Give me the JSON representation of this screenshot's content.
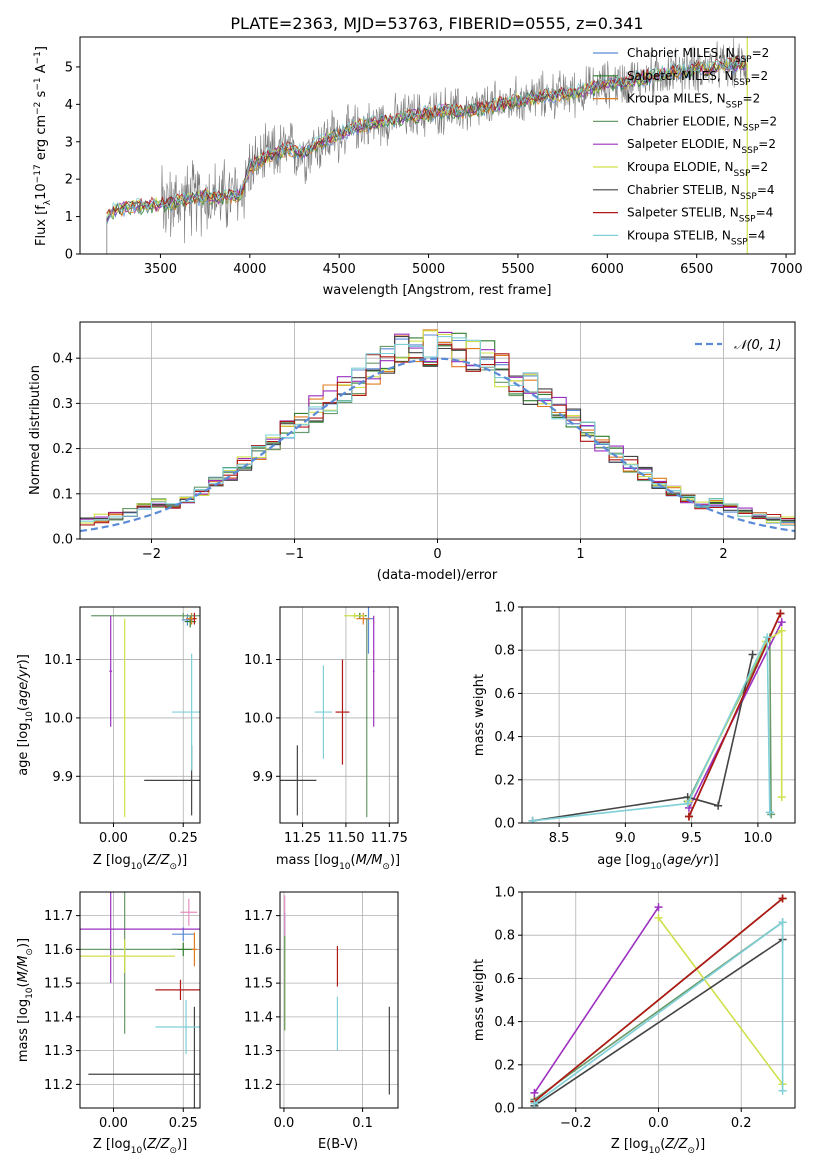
{
  "figure": {
    "title": "PLATE=2363, MJD=53763, FIBERID=0555, z=0.341"
  },
  "colors": {
    "Chabrier MILES": "#5b8bd6",
    "Salpeter MILES": "#2f7f2f",
    "Kroupa MILES": "#e07b20",
    "Chabrier ELODIE": "#6a9a6a",
    "Salpeter ELODIE": "#9b30c0",
    "Kroupa ELODIE": "#cfe04a",
    "Chabrier STELIB": "#444444",
    "Salpeter STELIB": "#b01818",
    "Kroupa STELIB": "#7fd0d8",
    "data": "#7a7a7a",
    "gauss": "#5b8bd6"
  },
  "chart_data": [
    {
      "type": "line",
      "panel": "spectrum",
      "xlabel": "wavelength [Angstrom, rest frame]",
      "ylabel": "Flux [f_λ 10^-17 erg cm^-2 s^-1 A^-1]",
      "xlim": [
        3050,
        7050
      ],
      "ylim": [
        0,
        5.8
      ],
      "xticks": [
        3500,
        4000,
        4500,
        5000,
        5500,
        6000,
        6500,
        7000
      ],
      "yticks": [
        0,
        1,
        2,
        3,
        4,
        5
      ],
      "legend_placement": "upper-right",
      "legend": [
        "Chabrier MILES, N_SSP=2",
        "Salpeter MILES, N_SSP=2",
        "Kroupa MILES, N_SSP=2",
        "Chabrier ELODIE, N_SSP=2",
        "Salpeter ELODIE, N_SSP=2",
        "Kroupa ELODIE, N_SSP=2",
        "Chabrier STELIB, N_SSP=4",
        "Salpeter STELIB, N_SSP=4",
        "Kroupa STELIB, N_SSP=4"
      ],
      "model_continuum": [
        [
          3200,
          1.0
        ],
        [
          3250,
          1.2
        ],
        [
          3350,
          1.25
        ],
        [
          3450,
          1.3
        ],
        [
          3550,
          1.35
        ],
        [
          3650,
          1.45
        ],
        [
          3750,
          1.55
        ],
        [
          3850,
          1.5
        ],
        [
          3950,
          1.6
        ],
        [
          4000,
          2.3
        ],
        [
          4100,
          2.6
        ],
        [
          4200,
          2.8
        ],
        [
          4300,
          2.7
        ],
        [
          4400,
          3.0
        ],
        [
          4500,
          3.2
        ],
        [
          4600,
          3.4
        ],
        [
          4700,
          3.5
        ],
        [
          4800,
          3.6
        ],
        [
          4900,
          3.7
        ],
        [
          5000,
          3.75
        ],
        [
          5100,
          3.85
        ],
        [
          5200,
          3.8
        ],
        [
          5300,
          3.9
        ],
        [
          5400,
          4.0
        ],
        [
          5500,
          4.1
        ],
        [
          5600,
          4.2
        ],
        [
          5700,
          4.25
        ],
        [
          5800,
          4.3
        ],
        [
          5900,
          4.4
        ],
        [
          6000,
          4.55
        ],
        [
          6100,
          4.6
        ],
        [
          6200,
          4.7
        ],
        [
          6300,
          4.8
        ],
        [
          6400,
          4.9
        ],
        [
          6500,
          4.95
        ],
        [
          6600,
          5.0
        ],
        [
          6700,
          5.05
        ],
        [
          6780,
          5.1
        ]
      ]
    },
    {
      "type": "bar",
      "panel": "residuals",
      "xlabel": "(data-model)/error",
      "ylabel": "Normed distribution",
      "xlim": [
        -2.5,
        2.5
      ],
      "ylim": [
        0,
        0.48
      ],
      "xticks": [
        -2,
        -1,
        0,
        1,
        2
      ],
      "yticks": [
        0.0,
        0.1,
        0.2,
        0.3,
        0.4
      ],
      "legend": [
        "𝒩(0, 1)"
      ],
      "legend_placement": "upper-right",
      "bin_width": 0.1
    },
    {
      "type": "scatter",
      "panel": "age-Z",
      "xlabel": "Z [log10(Z/Z⊙)]",
      "ylabel": "age [log10(age/yr)]",
      "xlim": [
        -0.12,
        0.31
      ],
      "ylim": [
        9.82,
        10.19
      ],
      "xticks": [
        0.0,
        0.25
      ],
      "yticks": [
        9.9,
        10.0,
        10.1
      ],
      "points": [
        {
          "model": "Chabrier MILES",
          "x": 0.265,
          "y": 10.168,
          "xerr": 0.02,
          "yerr": 0.01
        },
        {
          "model": "Salpeter MILES",
          "x": 0.275,
          "y": 10.165,
          "xerr": 0.02,
          "yerr": 0.01
        },
        {
          "model": "Kroupa MILES",
          "x": 0.28,
          "y": 10.17,
          "xerr": 0.02,
          "yerr": 0.01
        },
        {
          "model": "Chabrier ELODIE",
          "x": 0.25,
          "y": 10.175,
          "xerr": 0.33,
          "yerr": 0.005
        },
        {
          "model": "Salpeter ELODIE",
          "x": -0.01,
          "y": 10.08,
          "xerr": 0.005,
          "yerr": 0.095
        },
        {
          "model": "Kroupa ELODIE",
          "x": 0.04,
          "y": 10.0,
          "xerr": 0.005,
          "yerr": 0.17
        },
        {
          "model": "Chabrier STELIB",
          "x": 0.28,
          "y": 9.893,
          "xerr": 0.17,
          "yerr": 0.06
        },
        {
          "model": "Salpeter STELIB",
          "x": 0.29,
          "y": 10.17,
          "xerr": 0.005,
          "yerr": 0.01
        },
        {
          "model": "Kroupa STELIB",
          "x": 0.28,
          "y": 10.01,
          "xerr": 0.07,
          "yerr": 0.1
        }
      ]
    },
    {
      "type": "scatter",
      "panel": "age-mass",
      "xlabel": "mass [log10(M/M⊙)]",
      "xlim": [
        11.12,
        11.8
      ],
      "ylim": [
        9.82,
        10.19
      ],
      "xticks": [
        11.25,
        11.5,
        11.75
      ],
      "yticks": [
        9.9,
        10.0,
        10.1
      ],
      "points": [
        {
          "model": "Chabrier MILES",
          "x": 11.63,
          "y": 10.17,
          "xerr": 0.03,
          "yerr": 0.06
        },
        {
          "model": "Salpeter MILES",
          "x": 11.58,
          "y": 10.175,
          "xerr": 0.04,
          "yerr": 0.005
        },
        {
          "model": "Kroupa MILES",
          "x": 11.6,
          "y": 10.17,
          "xerr": 0.04,
          "yerr": 0.01
        },
        {
          "model": "Chabrier ELODIE",
          "x": 11.62,
          "y": 10.0,
          "xerr": 0.005,
          "yerr": 0.17
        },
        {
          "model": "Salpeter ELODIE",
          "x": 11.66,
          "y": 10.08,
          "xerr": 0.005,
          "yerr": 0.095
        },
        {
          "model": "Kroupa ELODIE",
          "x": 11.55,
          "y": 10.175,
          "xerr": 0.06,
          "yerr": 0.005
        },
        {
          "model": "Chabrier STELIB",
          "x": 11.22,
          "y": 9.893,
          "xerr": 0.11,
          "yerr": 0.06
        },
        {
          "model": "Salpeter STELIB",
          "x": 11.48,
          "y": 10.01,
          "xerr": 0.04,
          "yerr": 0.09
        },
        {
          "model": "Kroupa STELIB",
          "x": 11.37,
          "y": 10.01,
          "xerr": 0.05,
          "yerr": 0.08
        }
      ]
    },
    {
      "type": "line",
      "panel": "massweight-age",
      "xlabel": "age [log10(age/yr)]",
      "ylabel": "mass weight",
      "xlim": [
        8.22,
        10.28
      ],
      "ylim": [
        0,
        1.0
      ],
      "xticks": [
        8.5,
        9.0,
        9.5,
        10.0
      ],
      "yticks": [
        0.0,
        0.2,
        0.4,
        0.6,
        0.8,
        1.0
      ],
      "series": [
        {
          "name": "Chabrier MILES",
          "points": [
            [
              9.48,
              0.03
            ],
            [
              10.17,
              0.97
            ]
          ]
        },
        {
          "name": "Salpeter MILES",
          "points": [
            [
              9.48,
              0.03
            ],
            [
              10.17,
              0.97
            ]
          ]
        },
        {
          "name": "Kroupa MILES",
          "points": [
            [
              9.48,
              0.03
            ],
            [
              10.17,
              0.97
            ]
          ]
        },
        {
          "name": "Chabrier ELODIE",
          "points": [
            [
              9.47,
              0.1
            ],
            [
              10.09,
              0.86
            ],
            [
              10.1,
              0.04
            ]
          ]
        },
        {
          "name": "Salpeter ELODIE",
          "points": [
            [
              9.48,
              0.07
            ],
            [
              10.18,
              0.93
            ]
          ]
        },
        {
          "name": "Kroupa ELODIE",
          "points": [
            [
              9.48,
              0.1
            ],
            [
              10.06,
              0.84
            ],
            [
              10.18,
              0.89
            ],
            [
              10.18,
              0.12
            ]
          ]
        },
        {
          "name": "Chabrier STELIB",
          "points": [
            [
              8.3,
              0.01
            ],
            [
              9.47,
              0.12
            ],
            [
              9.7,
              0.08
            ],
            [
              9.96,
              0.78
            ]
          ]
        },
        {
          "name": "Salpeter STELIB",
          "points": [
            [
              9.48,
              0.03
            ],
            [
              10.17,
              0.97
            ]
          ]
        },
        {
          "name": "Kroupa STELIB",
          "points": [
            [
              8.3,
              0.01
            ],
            [
              9.47,
              0.09
            ],
            [
              10.07,
              0.86
            ],
            [
              10.09,
              0.05
            ]
          ]
        }
      ]
    },
    {
      "type": "scatter",
      "panel": "mass-Z",
      "xlabel": "Z [log10(Z/Z⊙)]",
      "ylabel": "mass [log10(M/M⊙)]",
      "xlim": [
        -0.12,
        0.31
      ],
      "ylim": [
        11.13,
        11.77
      ],
      "xticks": [
        0.0,
        0.25
      ],
      "yticks": [
        11.2,
        11.3,
        11.4,
        11.5,
        11.6,
        11.7
      ],
      "points": [
        {
          "model": "Chabrier MILES",
          "x": 0.25,
          "y": 11.645,
          "xerr": 0.04,
          "yerr": 0.02
        },
        {
          "model": "Salpeter MILES",
          "x": 0.25,
          "y": 11.6,
          "xerr": 0.04,
          "yerr": 0.02
        },
        {
          "model": "Kroupa MILES",
          "x": 0.29,
          "y": 11.6,
          "xerr": 0.01,
          "yerr": 0.05
        },
        {
          "model": "Chabrier ELODIE",
          "x": 0.04,
          "y": 11.6,
          "xerr": 0.19,
          "yerr": 0.25
        },
        {
          "model": "Salpeter ELODIE",
          "x": -0.01,
          "y": 11.66,
          "xerr": 0.33,
          "yerr": 0.16
        },
        {
          "model": "Kroupa ELODIE",
          "x": 0.04,
          "y": 11.58,
          "xerr": 0.18,
          "yerr": 0.05
        },
        {
          "model": "Chabrier STELIB",
          "x": 0.29,
          "y": 11.23,
          "xerr": 0.38,
          "yerr": 0.2
        },
        {
          "model": "Salpeter STELIB",
          "x": 0.24,
          "y": 11.48,
          "xerr": 0.09,
          "yerr": 0.03
        },
        {
          "model": "Kroupa STELIB",
          "x": 0.26,
          "y": 11.37,
          "xerr": 0.11,
          "yerr": 0.08
        },
        {
          "model": "extra-pink",
          "x": 0.27,
          "y": 11.71,
          "xerr": 0.03,
          "yerr": 0.04
        }
      ]
    },
    {
      "type": "scatter",
      "panel": "mass-EBV",
      "xlabel": "E(B-V)",
      "xlim": [
        -0.005,
        0.145
      ],
      "ylim": [
        11.13,
        11.77
      ],
      "xticks": [
        0.0,
        0.1
      ],
      "yticks": [
        11.2,
        11.3,
        11.4,
        11.5,
        11.6,
        11.7
      ],
      "points": [
        {
          "model": "Chabrier MILES",
          "x": 0.001,
          "y": 11.65,
          "xerr": 0.0005,
          "yerr": 0.06
        },
        {
          "model": "Kroupa ELODIE",
          "x": 0.001,
          "y": 11.5,
          "xerr": 0.0005,
          "yerr": 0.14
        },
        {
          "model": "Chabrier ELODIE",
          "x": 0.001,
          "y": 11.5,
          "xerr": 0.0005,
          "yerr": 0.14
        },
        {
          "model": "Salpeter STELIB",
          "x": 0.068,
          "y": 11.55,
          "xerr": 0.0005,
          "yerr": 0.06
        },
        {
          "model": "Kroupa STELIB",
          "x": 0.068,
          "y": 11.38,
          "xerr": 0.0005,
          "yerr": 0.08
        },
        {
          "model": "Chabrier STELIB",
          "x": 0.134,
          "y": 11.3,
          "xerr": 0.0005,
          "yerr": 0.13
        },
        {
          "model": "extra-pink",
          "x": 0.001,
          "y": 11.7,
          "xerr": 0.0005,
          "yerr": 0.06
        }
      ]
    },
    {
      "type": "line",
      "panel": "massweight-Z",
      "xlabel": "Z [log10(Z/Z⊙)]",
      "ylabel": "mass weight",
      "xlim": [
        -0.33,
        0.33
      ],
      "ylim": [
        0,
        1.0
      ],
      "xticks": [
        -0.2,
        0.0,
        0.2
      ],
      "yticks": [
        0.0,
        0.2,
        0.4,
        0.6,
        0.8,
        1.0
      ],
      "series": [
        {
          "name": "Chabrier MILES",
          "points": [
            [
              -0.3,
              0.03
            ],
            [
              0.3,
              0.97
            ]
          ]
        },
        {
          "name": "Salpeter MILES",
          "points": [
            [
              -0.3,
              0.03
            ],
            [
              0.3,
              0.97
            ]
          ]
        },
        {
          "name": "Kroupa MILES",
          "points": [
            [
              -0.3,
              0.03
            ],
            [
              0.3,
              0.97
            ]
          ]
        },
        {
          "name": "Chabrier ELODIE",
          "points": [
            [
              -0.3,
              0.04
            ],
            [
              0.3,
              0.86
            ]
          ]
        },
        {
          "name": "Salpeter ELODIE",
          "points": [
            [
              -0.3,
              0.07
            ],
            [
              0.0,
              0.93
            ]
          ]
        },
        {
          "name": "Kroupa ELODIE",
          "points": [
            [
              0.0,
              0.88
            ],
            [
              0.3,
              0.11
            ]
          ]
        },
        {
          "name": "Chabrier STELIB",
          "points": [
            [
              -0.3,
              0.01
            ],
            [
              0.3,
              0.78
            ]
          ]
        },
        {
          "name": "Salpeter STELIB",
          "points": [
            [
              -0.3,
              0.03
            ],
            [
              0.3,
              0.97
            ]
          ]
        },
        {
          "name": "Kroupa STELIB",
          "points": [
            [
              -0.3,
              0.02
            ],
            [
              0.3,
              0.86
            ],
            [
              0.3,
              0.08
            ]
          ]
        }
      ]
    }
  ]
}
